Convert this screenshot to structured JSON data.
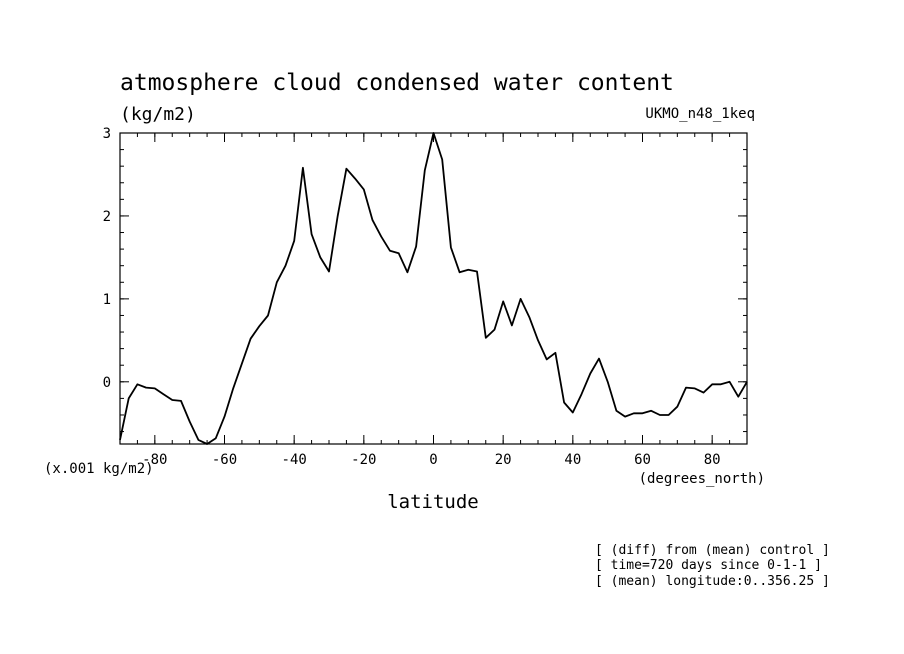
{
  "chart_data": {
    "type": "line",
    "title": "atmosphere cloud condensed water content",
    "units_label": "(kg/m2)",
    "model_label": "UKMO_n48_1keq",
    "scale_label": "(x.001 kg/m2)",
    "xlabel": "latitude",
    "x_unit_label": "(degrees_north)",
    "xlim": [
      -90,
      90
    ],
    "ylim": [
      -0.75,
      3.0
    ],
    "x_ticks": [
      -80,
      -60,
      -40,
      -20,
      0,
      20,
      40,
      60,
      80
    ],
    "x_tick_labels": [
      "-80",
      "-60",
      "-40",
      "-20",
      "0",
      "20",
      "40",
      "60",
      "80"
    ],
    "y_ticks": [
      0,
      1,
      2,
      3
    ],
    "y_tick_labels": [
      "0",
      "1",
      "2",
      "3"
    ],
    "x_minor_step": 5,
    "y_minor_step": 0.2,
    "grid": false,
    "series": [
      {
        "color": "#000000",
        "x": [
          -90,
          -87.5,
          -85,
          -82.5,
          -80,
          -77.5,
          -75,
          -72.5,
          -70,
          -67.5,
          -65,
          -62.5,
          -60,
          -57.5,
          -55,
          -52.5,
          -50,
          -47.5,
          -45,
          -42.5,
          -40,
          -37.5,
          -35,
          -32.5,
          -30,
          -27.5,
          -25,
          -22.5,
          -20,
          -17.5,
          -15,
          -12.5,
          -10,
          -7.5,
          -5,
          -2.5,
          0,
          2.5,
          5,
          7.5,
          10,
          12.5,
          15,
          17.5,
          20,
          22.5,
          25,
          27.5,
          30,
          32.5,
          35,
          37.5,
          40,
          42.5,
          45,
          47.5,
          50,
          52.5,
          55,
          57.5,
          60,
          62.5,
          65,
          67.5,
          70,
          72.5,
          75,
          77.5,
          80,
          82.5,
          85,
          87.5,
          90
        ],
        "y": [
          -0.7,
          -0.2,
          -0.03,
          -0.07,
          -0.08,
          -0.15,
          -0.22,
          -0.23,
          -0.48,
          -0.7,
          -0.75,
          -0.68,
          -0.42,
          -0.08,
          0.22,
          0.52,
          0.67,
          0.8,
          1.2,
          1.4,
          1.7,
          2.58,
          1.78,
          1.5,
          1.33,
          2.0,
          2.57,
          2.45,
          2.32,
          1.95,
          1.75,
          1.58,
          1.55,
          1.32,
          1.63,
          2.55,
          3.0,
          2.68,
          1.62,
          1.32,
          1.35,
          1.33,
          0.53,
          0.63,
          0.97,
          0.68,
          1.0,
          0.78,
          0.5,
          0.27,
          0.35,
          -0.25,
          -0.37,
          -0.15,
          0.1,
          0.28,
          0.0,
          -0.35,
          -0.42,
          -0.38,
          -0.38,
          -0.35,
          -0.4,
          -0.4,
          -0.3,
          -0.07,
          -0.08,
          -0.13,
          -0.03,
          -0.03,
          0.0,
          -0.18,
          0.0
        ]
      }
    ]
  },
  "footnotes": [
    "[ (diff) from (mean) control ]",
    "[ time=720 days since 0-1-1 ]",
    "[ (mean) longitude:0..356.25 ]"
  ]
}
